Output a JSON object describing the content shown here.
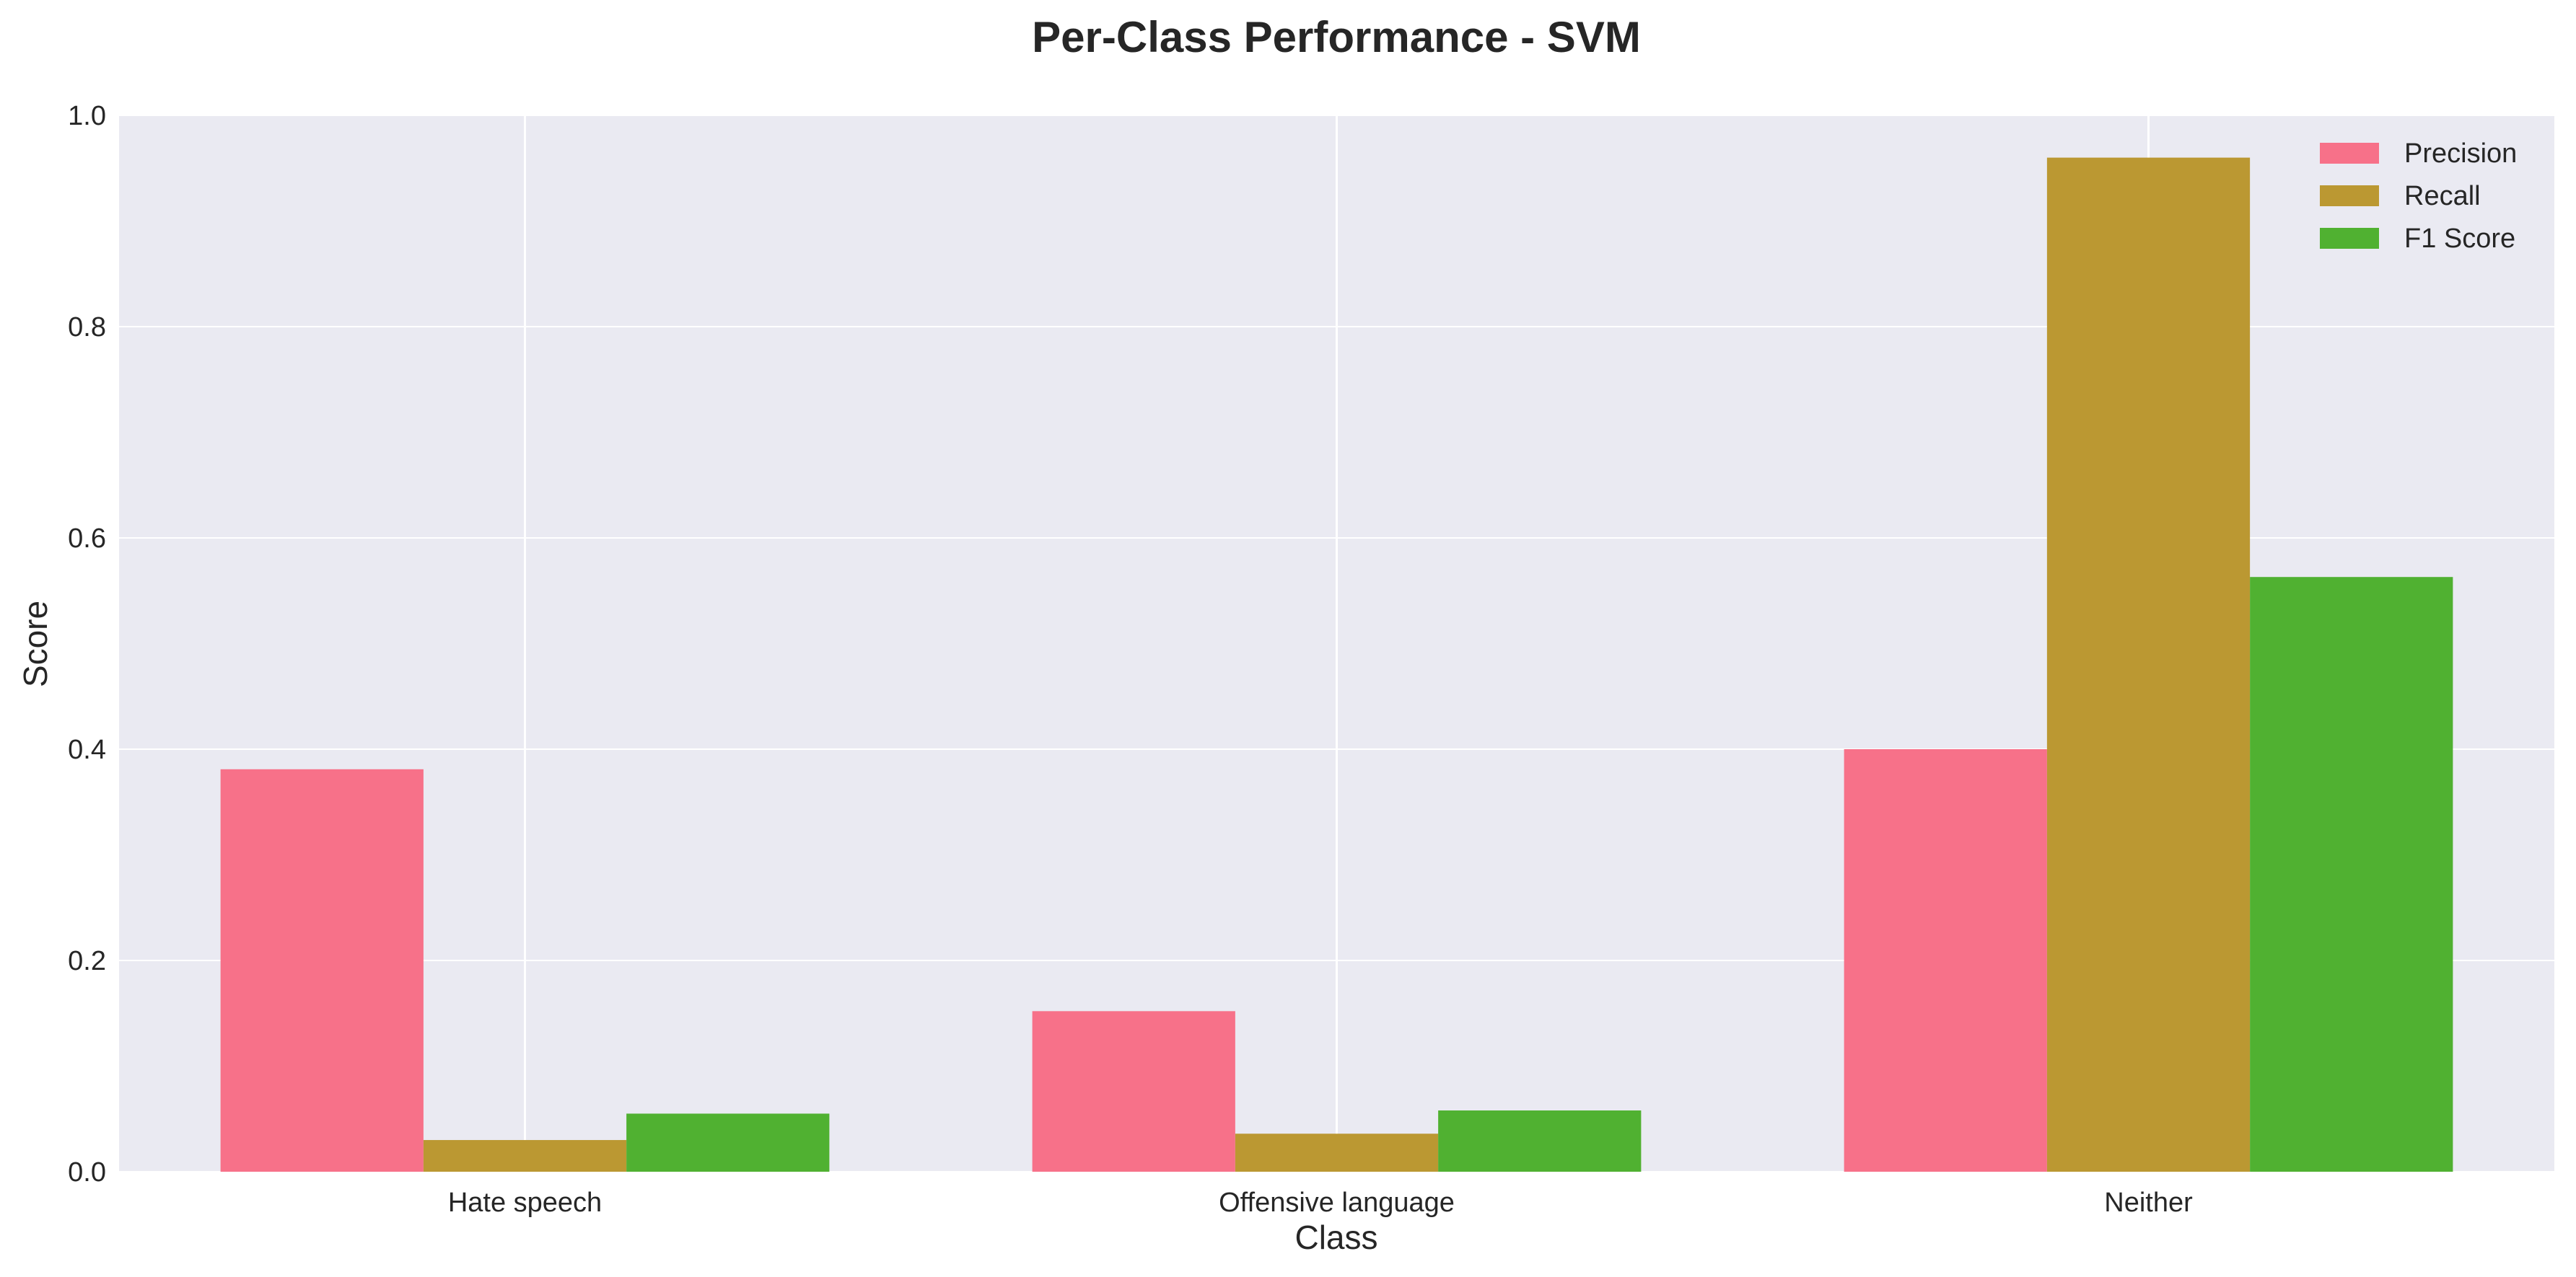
{
  "chart_data": {
    "type": "bar",
    "title": "Per-Class Performance - SVM",
    "xlabel": "Class",
    "ylabel": "Score",
    "categories": [
      "Hate speech",
      "Offensive language",
      "Neither"
    ],
    "series": [
      {
        "name": "Precision",
        "color": "#f77189",
        "values": [
          0.381,
          0.152,
          0.4
        ]
      },
      {
        "name": "Recall",
        "color": "#bb9832",
        "values": [
          0.03,
          0.036,
          0.96
        ]
      },
      {
        "name": "F1 Score",
        "color": "#50b131",
        "values": [
          0.055,
          0.058,
          0.563
        ]
      }
    ],
    "ylim": [
      0.0,
      1.0
    ],
    "yticks": [
      "0.0",
      "0.2",
      "0.4",
      "0.6",
      "0.8",
      "1.0"
    ],
    "grid": true,
    "legend": "top-right"
  }
}
